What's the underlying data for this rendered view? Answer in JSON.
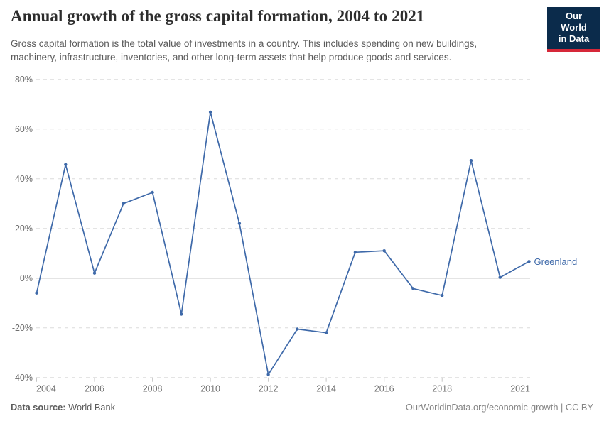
{
  "header": {
    "title": "Annual growth of the gross capital formation, 2004 to 2021",
    "subtitle": "Gross capital formation is the total value of investments in a country. This includes spending on new buildings, machinery, infrastructure, inventories, and other long-term assets that help produce goods and services.",
    "logo": {
      "line1": "Our World",
      "line2": "in Data",
      "bg_color": "#0b2b4b",
      "accent_color": "#d62839"
    }
  },
  "footer": {
    "datasource_label": "Data source:",
    "datasource_value": "World Bank",
    "attribution": "OurWorldinData.org/economic-growth | CC BY"
  },
  "chart_data": {
    "type": "line",
    "title": "Annual growth of the gross capital formation, 2004 to 2021",
    "x": [
      2004,
      2005,
      2006,
      2007,
      2008,
      2009,
      2010,
      2011,
      2012,
      2013,
      2014,
      2015,
      2016,
      2017,
      2018,
      2019,
      2020,
      2021
    ],
    "series": [
      {
        "name": "Greenland",
        "color": "#3e69a9",
        "values": [
          -6,
          45.7,
          2,
          30,
          34.5,
          -14.5,
          66.8,
          22,
          -38.8,
          -20.5,
          -22,
          10.4,
          11,
          -4.2,
          -7,
          47.3,
          0.3,
          6.7
        ]
      }
    ],
    "xlim": [
      2004,
      2021
    ],
    "ylim": [
      -40,
      80
    ],
    "x_ticks": [
      2004,
      2006,
      2008,
      2010,
      2012,
      2014,
      2016,
      2018,
      2021
    ],
    "y_ticks": [
      80,
      60,
      40,
      20,
      0,
      -20,
      -40
    ],
    "y_suffix": "%",
    "grid": "horizontal-dashed",
    "zero_line": true,
    "legend_position": "end-of-line-label",
    "end_label": "Greenland"
  }
}
